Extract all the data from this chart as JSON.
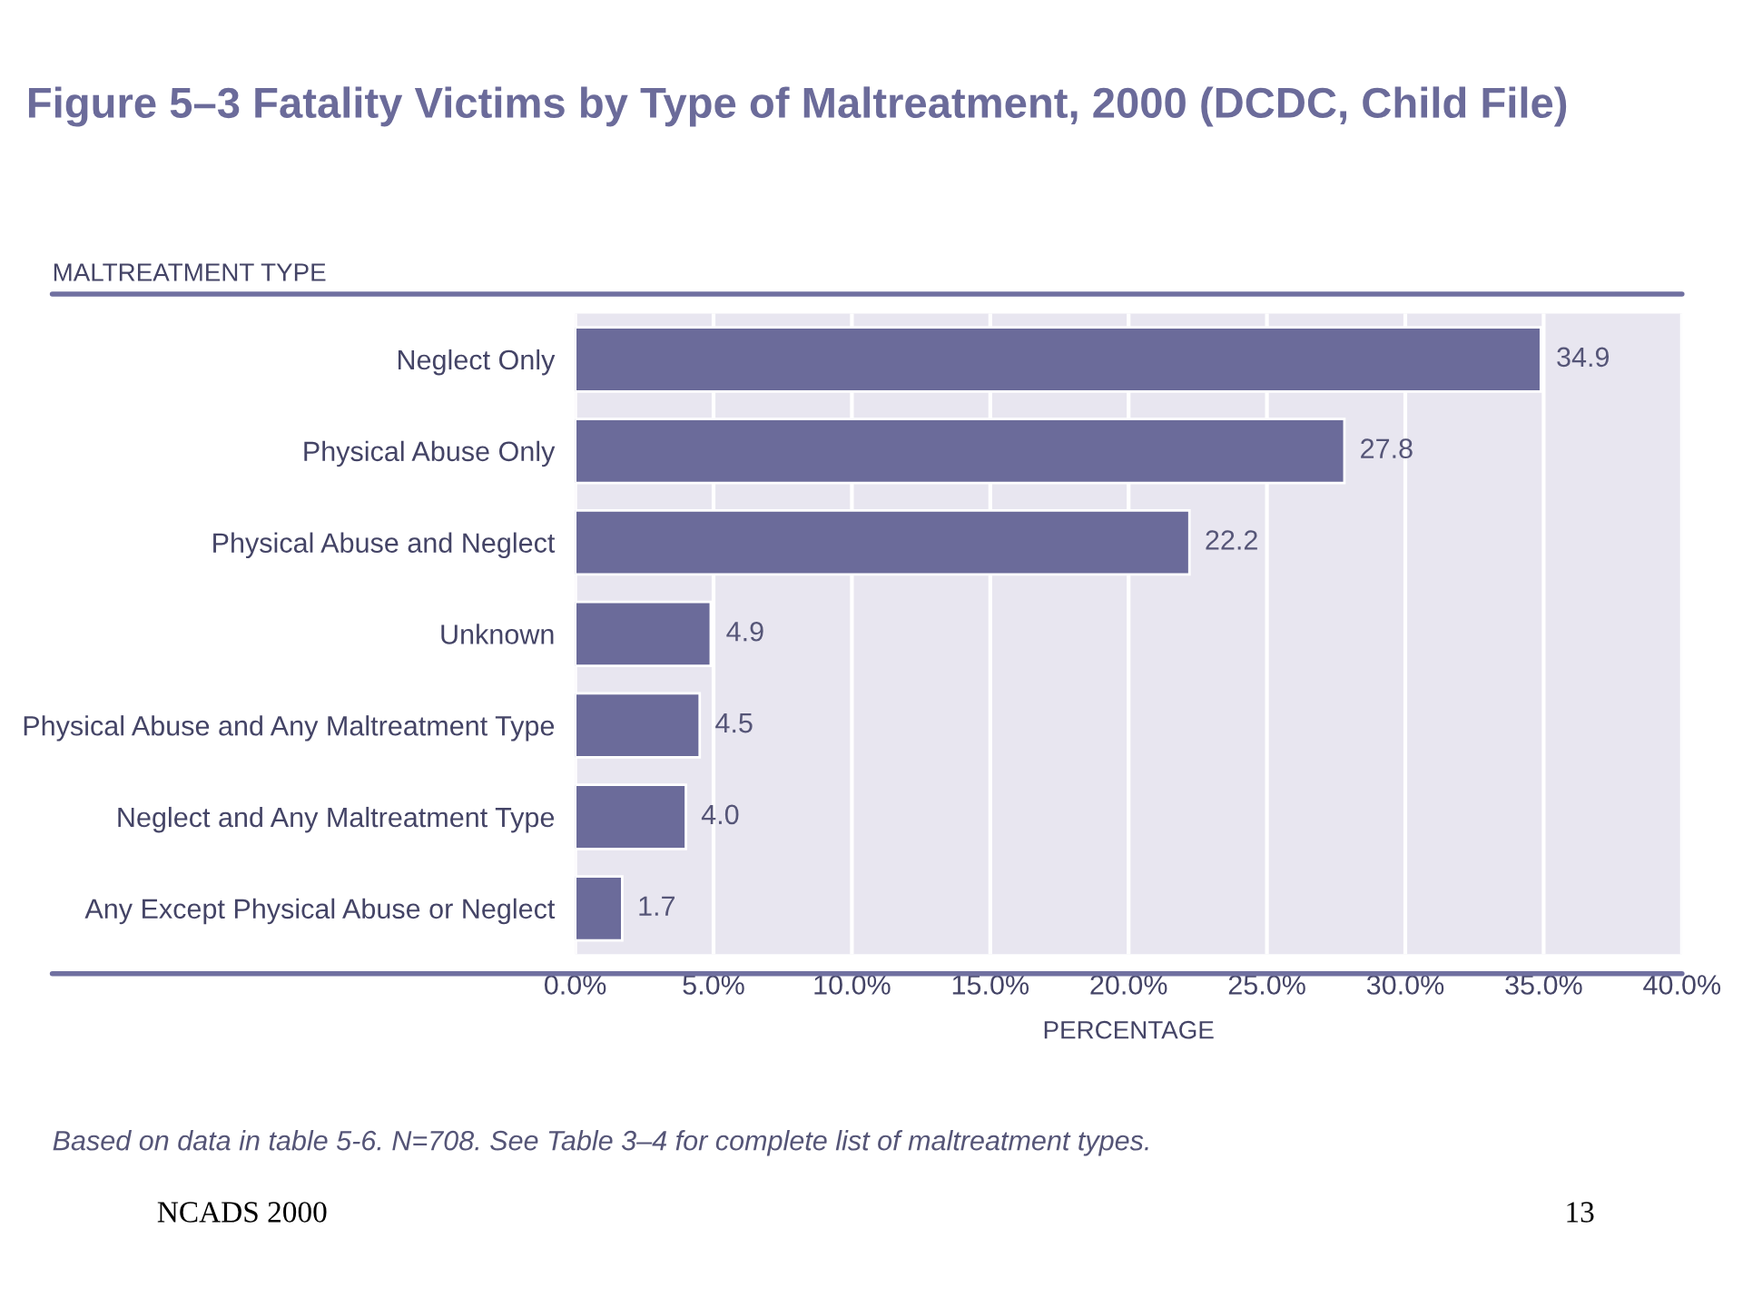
{
  "chart_data": {
    "type": "bar",
    "orientation": "horizontal",
    "title": "Figure 5–3 Fatality Victims by Type of Maltreatment, 2000 (DCDC, Child File)",
    "ylabel": "MALTREATMENT TYPE",
    "xlabel": "PERCENTAGE",
    "categories": [
      "Neglect Only",
      "Physical Abuse Only",
      "Physical Abuse and Neglect",
      "Unknown",
      "Physical Abuse and Any Maltreatment Type",
      "Neglect and Any Maltreatment Type",
      "Any Except Physical Abuse or Neglect"
    ],
    "values": [
      34.9,
      27.8,
      22.2,
      4.9,
      4.5,
      4.0,
      1.7
    ],
    "value_labels": [
      "34.9",
      "27.8",
      "22.2",
      "4.9",
      "4.5",
      "4.0",
      "1.7"
    ],
    "color": "#6b6b9a",
    "xlim": [
      0,
      40
    ],
    "xticks": [
      {
        "value": 0,
        "label": "0.0%"
      },
      {
        "value": 5,
        "label": "5.0%"
      },
      {
        "value": 10,
        "label": "10.0%"
      },
      {
        "value": 15,
        "label": "15.0%"
      },
      {
        "value": 20,
        "label": "20.0%"
      },
      {
        "value": 25,
        "label": "25.0%"
      },
      {
        "value": 30,
        "label": "30.0%"
      },
      {
        "value": 35,
        "label": "35.0%"
      },
      {
        "value": 40,
        "label": "40.0%"
      }
    ],
    "grid": "x",
    "annotations": [
      "Based on data in table 5-6. N=708. See Table 3–4 for complete list of maltreatment types.",
      "NCADS 2000",
      "13"
    ]
  }
}
